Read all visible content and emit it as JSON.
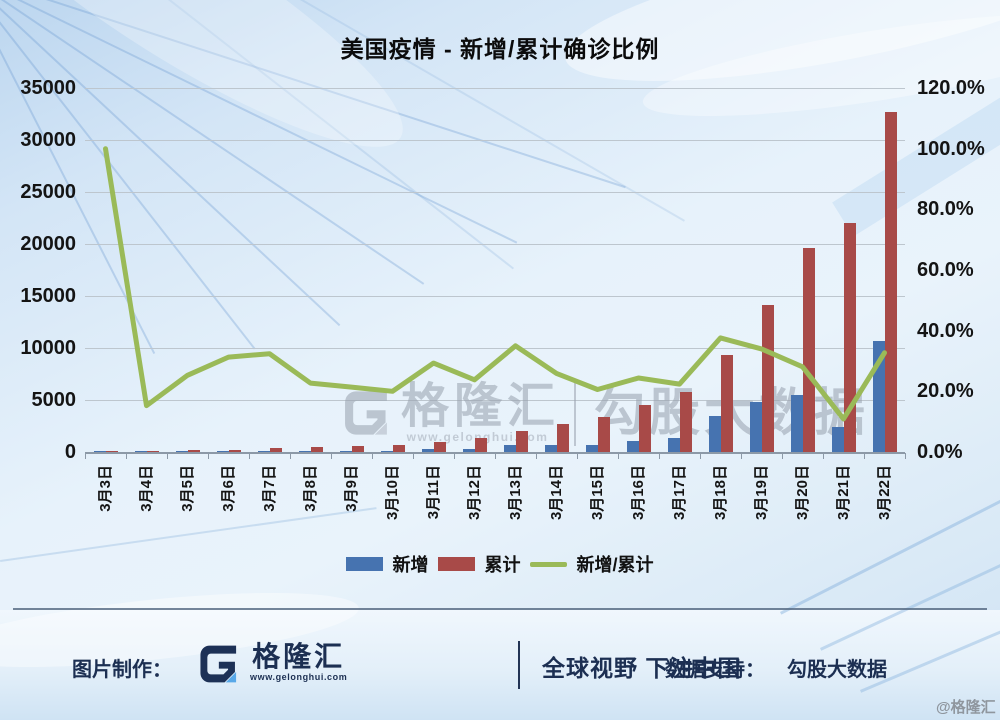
{
  "title": "美国疫情 - 新增/累计确诊比例",
  "watermark": {
    "brand": "格隆汇",
    "site": "www.gelonghui.com",
    "partner": "勾股大数据"
  },
  "footer": {
    "made_by_label": "图片制作：",
    "brand": "格隆汇",
    "site": "www.gelonghui.com",
    "slogan": "全球视野 下注中国",
    "support_label": "数据支持：",
    "support_brand": "勾股大数据",
    "credit": "@格隆汇"
  },
  "colors": {
    "new_bar": "#4673B0",
    "cum_bar": "#A84A48",
    "ratio_line": "#9ABA58",
    "gridline": "#bdc6ce"
  },
  "chart_data": {
    "type": "bar",
    "subtype": "combo-bar-line",
    "title": "美国疫情 - 新增/累计确诊比例",
    "categories": [
      "3月3日",
      "3月4日",
      "3月5日",
      "3月6日",
      "3月7日",
      "3月8日",
      "3月9日",
      "3月10日",
      "3月11日",
      "3月12日",
      "3月13日",
      "3月14日",
      "3月15日",
      "3月16日",
      "3月17日",
      "3月18日",
      "3月19日",
      "3月20日",
      "3月21日",
      "3月22日"
    ],
    "series": [
      {
        "name": "新增",
        "type": "bar",
        "axis": "left",
        "color": "#4673B0",
        "values": [
          100,
          18,
          40,
          72,
          110,
          100,
          120,
          140,
          290,
          310,
          700,
          700,
          700,
          1100,
          1300,
          3500,
          4800,
          5500,
          2400,
          10700
        ]
      },
      {
        "name": "累计",
        "type": "bar",
        "axis": "left",
        "color": "#A84A48",
        "values": [
          100,
          118,
          158,
          230,
          340,
          440,
          560,
          700,
          990,
          1300,
          2000,
          2700,
          3400,
          4500,
          5800,
          9300,
          14100,
          19600,
          22000,
          32700
        ]
      },
      {
        "name": "新增/累计",
        "type": "line",
        "axis": "right",
        "color": "#9ABA58",
        "values": [
          100.0,
          15.3,
          25.3,
          31.3,
          32.4,
          22.7,
          21.4,
          20.0,
          29.3,
          23.8,
          35.0,
          25.9,
          20.6,
          24.4,
          22.4,
          37.6,
          34.0,
          28.1,
          10.9,
          32.7
        ]
      }
    ],
    "axes": {
      "left": {
        "min": 0,
        "max": 35000,
        "ticks": [
          "35000",
          "30000",
          "25000",
          "20000",
          "15000",
          "10000",
          "5000",
          "0"
        ]
      },
      "right": {
        "min": 0,
        "max": 120,
        "ticks": [
          "120.0%",
          "100.0%",
          "80.0%",
          "60.0%",
          "40.0%",
          "20.0%",
          "0.0%"
        ]
      }
    },
    "grid": true,
    "legend_position": "bottom"
  }
}
